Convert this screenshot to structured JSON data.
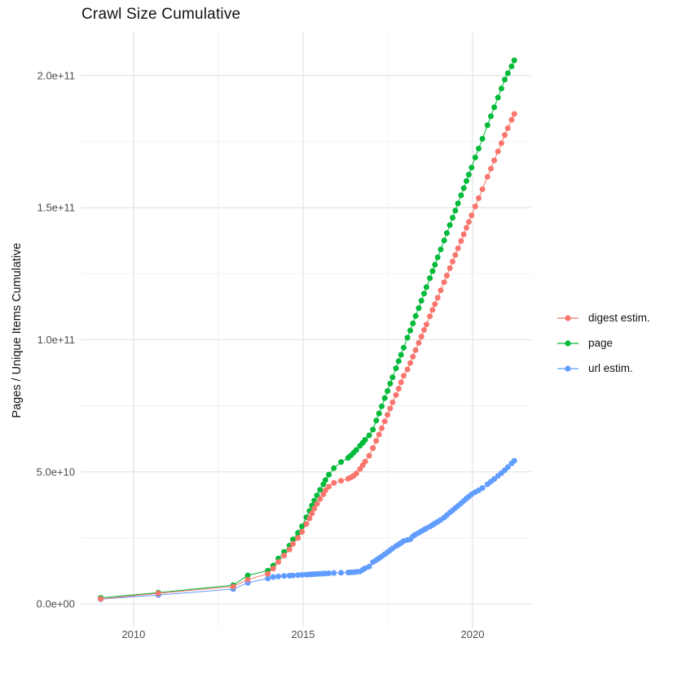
{
  "title": "Crawl Size Cumulative",
  "y_axis_title": "Pages / Unique Items Cumulative",
  "chart_data": {
    "type": "scatter",
    "title": "Crawl Size Cumulative",
    "xlabel": "",
    "ylabel": "Pages / Unique Items Cumulative",
    "values_unit": "items, stored as multiples of 1e9",
    "grid": true,
    "legend_position": "right",
    "x_domain": [
      2008.44,
      2021.73
    ],
    "y_domain_e9": [
      -8.9,
      216.3
    ],
    "x_ticks": [
      {
        "label": "2010",
        "value": 2010
      },
      {
        "label": "2015",
        "value": 2015
      },
      {
        "label": "2020",
        "value": 2020
      }
    ],
    "x_minor": [
      2012.5,
      2017.5
    ],
    "y_ticks": [
      {
        "label": "0.0e+00",
        "value_e9": 0
      },
      {
        "label": "5.0e+10",
        "value_e9": 50
      },
      {
        "label": "1.0e+11",
        "value_e9": 100
      },
      {
        "label": "1.5e+11",
        "value_e9": 150
      },
      {
        "label": "2.0e+11",
        "value_e9": 200
      }
    ],
    "y_minor_e9": [
      25,
      75,
      125,
      175
    ],
    "marker_radius": 3.5,
    "line_width": 1,
    "grid_major_color": "#e3e3e3",
    "grid_minor_color": "#efefef",
    "axis_text_color": "#4d4d4d",
    "draw_order": [
      "page",
      "url estim.",
      "digest estim."
    ],
    "series": [
      {
        "name": "digest estim.",
        "color": "#F8766D",
        "points": [
          [
            2009.03,
            1.9
          ],
          [
            2010.73,
            4.0
          ],
          [
            2012.94,
            6.6
          ],
          [
            2013.37,
            9.2
          ],
          [
            2013.96,
            11.4
          ],
          [
            2014.12,
            13.4
          ],
          [
            2014.27,
            15.9
          ],
          [
            2014.44,
            18.3
          ],
          [
            2014.6,
            20.6
          ],
          [
            2014.7,
            22.7
          ],
          [
            2014.85,
            25.0
          ],
          [
            2014.97,
            27.3
          ],
          [
            2015.1,
            30.3
          ],
          [
            2015.19,
            32.4
          ],
          [
            2015.26,
            34.3
          ],
          [
            2015.33,
            36.1
          ],
          [
            2015.41,
            37.9
          ],
          [
            2015.5,
            39.7
          ],
          [
            2015.6,
            41.5
          ],
          [
            2015.66,
            43.0
          ],
          [
            2015.76,
            44.4
          ],
          [
            2015.91,
            45.8
          ],
          [
            2016.12,
            46.6
          ],
          [
            2016.33,
            47.4
          ],
          [
            2016.41,
            47.9
          ],
          [
            2016.49,
            48.5
          ],
          [
            2016.57,
            49.4
          ],
          [
            2016.68,
            51.1
          ],
          [
            2016.76,
            52.5
          ],
          [
            2016.83,
            53.9
          ],
          [
            2016.95,
            56.1
          ],
          [
            2017.06,
            59.0
          ],
          [
            2017.16,
            61.7
          ],
          [
            2017.24,
            64.1
          ],
          [
            2017.32,
            66.5
          ],
          [
            2017.41,
            69.1
          ],
          [
            2017.49,
            71.6
          ],
          [
            2017.57,
            74.0
          ],
          [
            2017.64,
            76.3
          ],
          [
            2017.74,
            79.1
          ],
          [
            2017.82,
            81.5
          ],
          [
            2017.89,
            83.9
          ],
          [
            2017.97,
            86.4
          ],
          [
            2018.08,
            88.8
          ],
          [
            2018.16,
            91.2
          ],
          [
            2018.24,
            93.6
          ],
          [
            2018.32,
            96.1
          ],
          [
            2018.41,
            98.8
          ],
          [
            2018.49,
            101.2
          ],
          [
            2018.57,
            103.7
          ],
          [
            2018.64,
            105.8
          ],
          [
            2018.74,
            108.9
          ],
          [
            2018.82,
            111.3
          ],
          [
            2018.89,
            113.5
          ],
          [
            2018.97,
            115.9
          ],
          [
            2019.06,
            118.7
          ],
          [
            2019.16,
            121.8
          ],
          [
            2019.24,
            124.3
          ],
          [
            2019.33,
            127.1
          ],
          [
            2019.41,
            129.6
          ],
          [
            2019.49,
            132.1
          ],
          [
            2019.57,
            134.6
          ],
          [
            2019.66,
            137.4
          ],
          [
            2019.74,
            139.9
          ],
          [
            2019.82,
            142.4
          ],
          [
            2019.89,
            144.6
          ],
          [
            2019.97,
            147.1
          ],
          [
            2020.08,
            150.5
          ],
          [
            2020.18,
            153.6
          ],
          [
            2020.29,
            157.0
          ],
          [
            2020.44,
            161.7
          ],
          [
            2020.54,
            164.8
          ],
          [
            2020.64,
            167.9
          ],
          [
            2020.75,
            171.3
          ],
          [
            2020.85,
            174.4
          ],
          [
            2020.95,
            177.5
          ],
          [
            2021.04,
            180.1
          ],
          [
            2021.15,
            183.3
          ],
          [
            2021.23,
            185.5
          ]
        ]
      },
      {
        "name": "page",
        "color": "#00BA38",
        "points": [
          [
            2009.03,
            2.3
          ],
          [
            2010.73,
            4.3
          ],
          [
            2012.94,
            7.1
          ],
          [
            2013.37,
            10.8
          ],
          [
            2013.96,
            12.6
          ],
          [
            2014.12,
            14.5
          ],
          [
            2014.27,
            17.2
          ],
          [
            2014.44,
            19.7
          ],
          [
            2014.6,
            22.1
          ],
          [
            2014.7,
            24.4
          ],
          [
            2014.85,
            26.9
          ],
          [
            2014.97,
            29.4
          ],
          [
            2015.1,
            32.8
          ],
          [
            2015.19,
            35.2
          ],
          [
            2015.26,
            37.2
          ],
          [
            2015.33,
            39.1
          ],
          [
            2015.41,
            41.1
          ],
          [
            2015.5,
            43.2
          ],
          [
            2015.6,
            45.3
          ],
          [
            2015.66,
            46.9
          ],
          [
            2015.76,
            48.9
          ],
          [
            2015.91,
            51.4
          ],
          [
            2016.12,
            53.7
          ],
          [
            2016.33,
            55.3
          ],
          [
            2016.41,
            56.2
          ],
          [
            2016.49,
            57.2
          ],
          [
            2016.57,
            58.3
          ],
          [
            2016.68,
            59.9
          ],
          [
            2016.76,
            61.0
          ],
          [
            2016.83,
            62.1
          ],
          [
            2016.95,
            63.8
          ],
          [
            2017.06,
            66.0
          ],
          [
            2017.16,
            69.4
          ],
          [
            2017.24,
            72.1
          ],
          [
            2017.32,
            74.8
          ],
          [
            2017.41,
            77.9
          ],
          [
            2017.49,
            80.6
          ],
          [
            2017.57,
            83.4
          ],
          [
            2017.64,
            85.8
          ],
          [
            2017.74,
            89.2
          ],
          [
            2017.82,
            91.9
          ],
          [
            2017.89,
            94.3
          ],
          [
            2017.97,
            97.0
          ],
          [
            2018.08,
            100.8
          ],
          [
            2018.16,
            103.5
          ],
          [
            2018.24,
            106.2
          ],
          [
            2018.32,
            109.0
          ],
          [
            2018.41,
            112.0
          ],
          [
            2018.49,
            114.8
          ],
          [
            2018.57,
            117.5
          ],
          [
            2018.64,
            119.9
          ],
          [
            2018.74,
            123.3
          ],
          [
            2018.82,
            126.0
          ],
          [
            2018.89,
            128.4
          ],
          [
            2018.97,
            131.2
          ],
          [
            2019.06,
            134.2
          ],
          [
            2019.16,
            137.6
          ],
          [
            2019.24,
            140.4
          ],
          [
            2019.33,
            143.4
          ],
          [
            2019.41,
            146.2
          ],
          [
            2019.49,
            148.9
          ],
          [
            2019.57,
            151.6
          ],
          [
            2019.66,
            154.7
          ],
          [
            2019.74,
            157.4
          ],
          [
            2019.82,
            160.1
          ],
          [
            2019.89,
            162.5
          ],
          [
            2019.97,
            165.2
          ],
          [
            2020.08,
            169.0
          ],
          [
            2020.18,
            172.4
          ],
          [
            2020.29,
            176.1
          ],
          [
            2020.44,
            181.2
          ],
          [
            2020.54,
            184.6
          ],
          [
            2020.64,
            188.0
          ],
          [
            2020.75,
            191.7
          ],
          [
            2020.85,
            195.1
          ],
          [
            2020.95,
            198.5
          ],
          [
            2021.04,
            200.9
          ],
          [
            2021.15,
            203.5
          ],
          [
            2021.23,
            205.8
          ]
        ]
      },
      {
        "name": "url estim.",
        "color": "#619CFF",
        "points": [
          [
            2009.03,
            1.8
          ],
          [
            2010.73,
            3.4
          ],
          [
            2012.94,
            5.6
          ],
          [
            2013.37,
            8.0
          ],
          [
            2013.96,
            9.6
          ],
          [
            2014.12,
            10.2
          ],
          [
            2014.27,
            10.4
          ],
          [
            2014.44,
            10.6
          ],
          [
            2014.6,
            10.7
          ],
          [
            2014.7,
            10.8
          ],
          [
            2014.85,
            10.9
          ],
          [
            2014.97,
            11.0
          ],
          [
            2015.1,
            11.1
          ],
          [
            2015.19,
            11.16
          ],
          [
            2015.26,
            11.22
          ],
          [
            2015.33,
            11.28
          ],
          [
            2015.41,
            11.34
          ],
          [
            2015.5,
            11.4
          ],
          [
            2015.6,
            11.46
          ],
          [
            2015.66,
            11.52
          ],
          [
            2015.76,
            11.6
          ],
          [
            2015.91,
            11.7
          ],
          [
            2016.12,
            11.8
          ],
          [
            2016.33,
            11.9
          ],
          [
            2016.41,
            11.95
          ],
          [
            2016.49,
            12.0
          ],
          [
            2016.57,
            12.1
          ],
          [
            2016.68,
            12.3
          ],
          [
            2016.76,
            12.9
          ],
          [
            2016.83,
            13.5
          ],
          [
            2016.95,
            14.1
          ],
          [
            2017.06,
            15.8
          ],
          [
            2017.16,
            16.6
          ],
          [
            2017.24,
            17.3
          ],
          [
            2017.32,
            18.0
          ],
          [
            2017.41,
            18.8
          ],
          [
            2017.49,
            19.6
          ],
          [
            2017.57,
            20.3
          ],
          [
            2017.64,
            21.0
          ],
          [
            2017.74,
            21.9
          ],
          [
            2017.82,
            22.5
          ],
          [
            2017.89,
            23.1
          ],
          [
            2017.97,
            23.8
          ],
          [
            2018.08,
            24.2
          ],
          [
            2018.16,
            24.5
          ],
          [
            2018.24,
            25.6
          ],
          [
            2018.32,
            26.3
          ],
          [
            2018.41,
            26.9
          ],
          [
            2018.49,
            27.5
          ],
          [
            2018.57,
            28.1
          ],
          [
            2018.64,
            28.6
          ],
          [
            2018.74,
            29.3
          ],
          [
            2018.82,
            29.9
          ],
          [
            2018.89,
            30.5
          ],
          [
            2018.97,
            31.1
          ],
          [
            2019.06,
            31.8
          ],
          [
            2019.16,
            32.7
          ],
          [
            2019.24,
            33.6
          ],
          [
            2019.33,
            34.6
          ],
          [
            2019.41,
            35.4
          ],
          [
            2019.49,
            36.3
          ],
          [
            2019.57,
            37.1
          ],
          [
            2019.66,
            38.1
          ],
          [
            2019.74,
            39.0
          ],
          [
            2019.82,
            39.9
          ],
          [
            2019.89,
            40.6
          ],
          [
            2019.97,
            41.5
          ],
          [
            2020.08,
            42.3
          ],
          [
            2020.18,
            43.0
          ],
          [
            2020.29,
            43.9
          ],
          [
            2020.44,
            45.3
          ],
          [
            2020.54,
            46.3
          ],
          [
            2020.64,
            47.3
          ],
          [
            2020.75,
            48.5
          ],
          [
            2020.85,
            49.5
          ],
          [
            2020.95,
            50.6
          ],
          [
            2021.04,
            51.8
          ],
          [
            2021.15,
            53.2
          ],
          [
            2021.23,
            54.2
          ]
        ]
      }
    ]
  }
}
